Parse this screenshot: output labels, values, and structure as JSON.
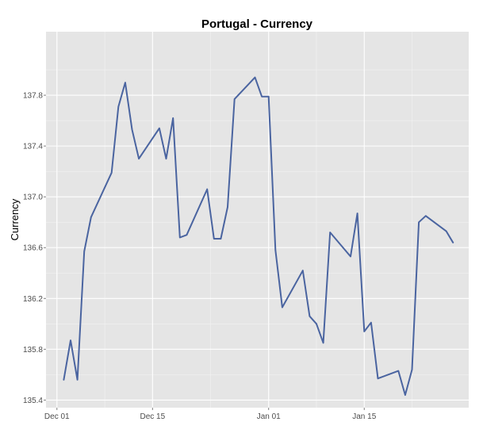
{
  "chart_data": {
    "type": "line",
    "title": "Portugal - Currency",
    "xlabel": "",
    "ylabel": "Currency",
    "x_ticks": [
      {
        "label": "Dec 01",
        "day": 1
      },
      {
        "label": "Dec 15",
        "day": 15
      },
      {
        "label": "Jan 01",
        "day": 32
      },
      {
        "label": "Jan 15",
        "day": 46
      }
    ],
    "y_ticks": [
      "135.4",
      "135.8",
      "136.2",
      "136.6",
      "137.0",
      "137.4",
      "137.8"
    ],
    "ylim": [
      135.34,
      138.3
    ],
    "xlim": [
      -0.6,
      61.3
    ],
    "grid": true,
    "legend": "none",
    "line_color": "#4a64a0",
    "background_color": "#e5e5e5",
    "series": [
      {
        "x": [
          "Dec 02",
          "Dec 03",
          "Dec 04",
          "Dec 05",
          "Dec 06",
          "Dec 09",
          "Dec 10",
          "Dec 11",
          "Dec 12",
          "Dec 13",
          "Dec 16",
          "Dec 17",
          "Dec 18",
          "Dec 19",
          "Dec 20",
          "Dec 23",
          "Dec 24",
          "Dec 25",
          "Dec 26",
          "Dec 27",
          "Dec 30",
          "Dec 31",
          "Jan 01",
          "Jan 02",
          "Jan 03",
          "Jan 06",
          "Jan 07",
          "Jan 08",
          "Jan 09",
          "Jan 10",
          "Jan 13",
          "Jan 14",
          "Jan 15",
          "Jan 16",
          "Jan 17",
          "Jan 20",
          "Jan 21",
          "Jan 22",
          "Jan 23",
          "Jan 24",
          "Jan 27",
          "Jan 28"
        ],
        "y": [
          135.56,
          135.87,
          135.56,
          136.57,
          136.84,
          137.19,
          137.71,
          137.9,
          137.53,
          137.3,
          137.54,
          137.3,
          137.62,
          136.68,
          136.7,
          137.06,
          136.67,
          136.67,
          136.92,
          137.77,
          137.94,
          137.79,
          137.79,
          136.58,
          136.13,
          136.42,
          136.06,
          136.0,
          135.85,
          136.72,
          136.53,
          136.87,
          135.94,
          136.01,
          135.57,
          135.63,
          135.44,
          135.64,
          136.8,
          136.85,
          136.73,
          136.64
        ]
      }
    ]
  }
}
